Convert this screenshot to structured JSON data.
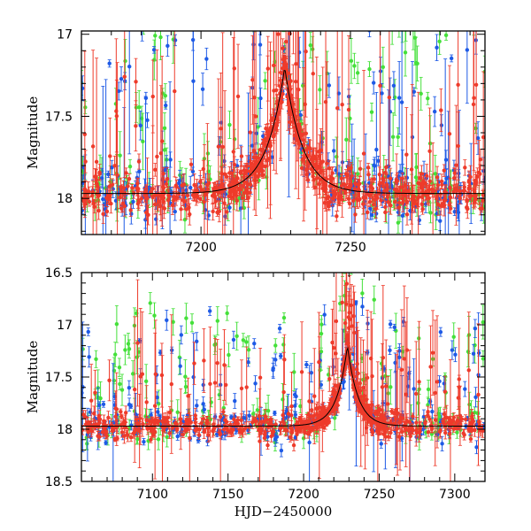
{
  "figure": {
    "xlabel": "HJD−2450000"
  },
  "colors": {
    "series_a": "#1e5ae6",
    "series_b": "#44e03a",
    "series_c": "#ee3b2b",
    "model": "#000000",
    "frame": "#000000"
  },
  "chart_data": [
    {
      "type": "scatter",
      "panel": "top",
      "title": "",
      "xlabel": "",
      "ylabel": "Magnitude",
      "xlim": [
        7160,
        7295
      ],
      "ylim": [
        18.22,
        16.98
      ],
      "y_inverted": true,
      "xticks": [
        7200,
        7250
      ],
      "yticks": [
        17,
        17.5,
        18
      ],
      "ytick_labels": [
        "17",
        "17.5",
        "18"
      ],
      "baseline": 17.97,
      "peak": {
        "x": 7228,
        "y": 17.2,
        "width": 6
      },
      "series": [
        {
          "name": "blue",
          "color": "#1e5ae6",
          "points": 260
        },
        {
          "name": "green",
          "color": "#44e03a",
          "points": 200
        },
        {
          "name": "red",
          "color": "#ee3b2b",
          "points": 700
        }
      ]
    },
    {
      "type": "scatter",
      "panel": "bottom",
      "title": "",
      "xlabel": "HJD−2450000",
      "ylabel": "Magnitude",
      "xlim": [
        7053,
        7320
      ],
      "ylim": [
        18.5,
        16.5
      ],
      "y_inverted": true,
      "xticks": [
        7100,
        7150,
        7200,
        7250,
        7300
      ],
      "yticks": [
        16.5,
        17,
        17.5,
        18,
        18.5
      ],
      "ytick_labels": [
        "16.5",
        "17",
        "17.5",
        "18",
        "18.5"
      ],
      "baseline": 17.97,
      "peak": {
        "x": 7229,
        "y": 17.2,
        "width": 7
      },
      "series": [
        {
          "name": "blue",
          "color": "#1e5ae6",
          "points": 260
        },
        {
          "name": "green",
          "color": "#44e03a",
          "points": 200
        },
        {
          "name": "red",
          "color": "#ee3b2b",
          "points": 700
        }
      ]
    }
  ]
}
